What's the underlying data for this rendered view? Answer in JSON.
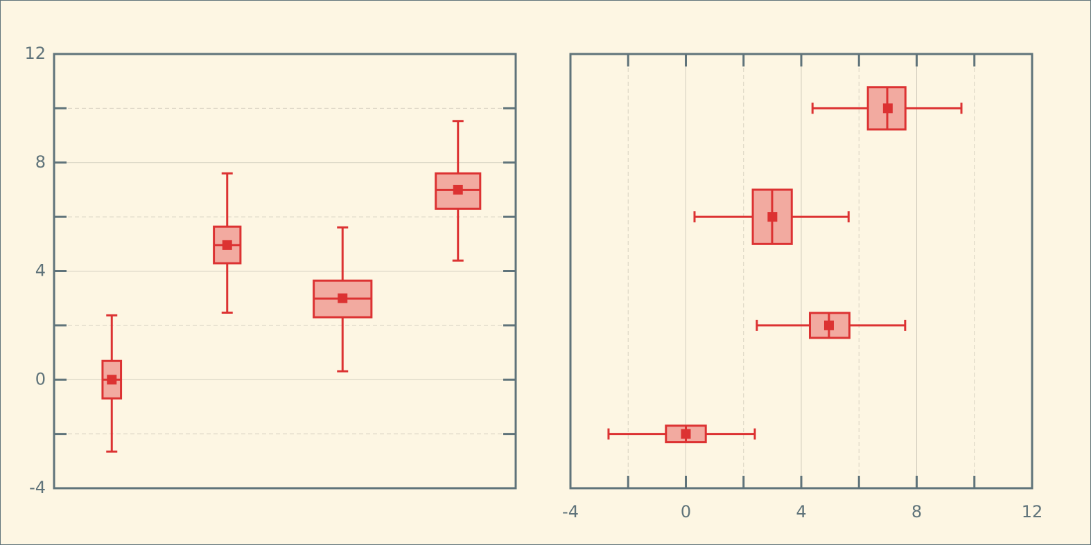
{
  "chart_data": [
    {
      "type": "boxplot",
      "orientation": "vertical",
      "xlim": [
        -1,
        7
      ],
      "ylim": [
        -4,
        12
      ],
      "yticks": [
        -4,
        0,
        4,
        8,
        12
      ],
      "minor_yticks": [
        -2,
        2,
        6,
        10
      ],
      "grid": true,
      "color": "#dc3232",
      "fill": "#f2aaa0",
      "boxes": [
        {
          "position": 0,
          "width": 0.32,
          "whislo": -2.65,
          "q1": -0.69,
          "med": 0,
          "q3": 0.69,
          "whishi": 2.37,
          "mean": 0
        },
        {
          "position": 2,
          "width": 0.46,
          "whislo": 2.47,
          "q1": 4.29,
          "med": 4.96,
          "q3": 5.64,
          "whishi": 7.6,
          "mean": 4.96
        },
        {
          "position": 4,
          "width": 1.0,
          "whislo": 0.31,
          "q1": 2.3,
          "med": 2.99,
          "q3": 3.65,
          "whishi": 5.61,
          "mean": 3
        },
        {
          "position": 6,
          "width": 0.77,
          "whislo": 4.39,
          "q1": 6.3,
          "med": 6.99,
          "q3": 7.6,
          "whishi": 9.53,
          "mean": 7
        }
      ]
    },
    {
      "type": "boxplot",
      "orientation": "horizontal",
      "xlim": [
        -4,
        12
      ],
      "ylim": [
        -4,
        12
      ],
      "xticks": [
        -4,
        0,
        4,
        8,
        12
      ],
      "minor_xticks": [
        -2,
        2,
        6,
        10
      ],
      "grid": true,
      "color": "#dc3232",
      "fill": "#f2aaa0",
      "boxes": [
        {
          "position": -2,
          "width": 0.61,
          "whislo": -2.68,
          "q1": -0.69,
          "med": 0,
          "q3": 0.69,
          "whishi": 2.39,
          "mean": 0
        },
        {
          "position": 2,
          "width": 0.92,
          "whislo": 2.46,
          "q1": 4.3,
          "med": 4.96,
          "q3": 5.67,
          "whishi": 7.6,
          "mean": 4.96
        },
        {
          "position": 6,
          "width": 2.0,
          "whislo": 0.3,
          "q1": 2.32,
          "med": 2.99,
          "q3": 3.67,
          "whishi": 5.64,
          "mean": 3
        },
        {
          "position": 10,
          "width": 1.56,
          "whislo": 4.39,
          "q1": 6.31,
          "med": 6.98,
          "q3": 7.61,
          "whishi": 9.55,
          "mean": 7
        }
      ]
    }
  ]
}
